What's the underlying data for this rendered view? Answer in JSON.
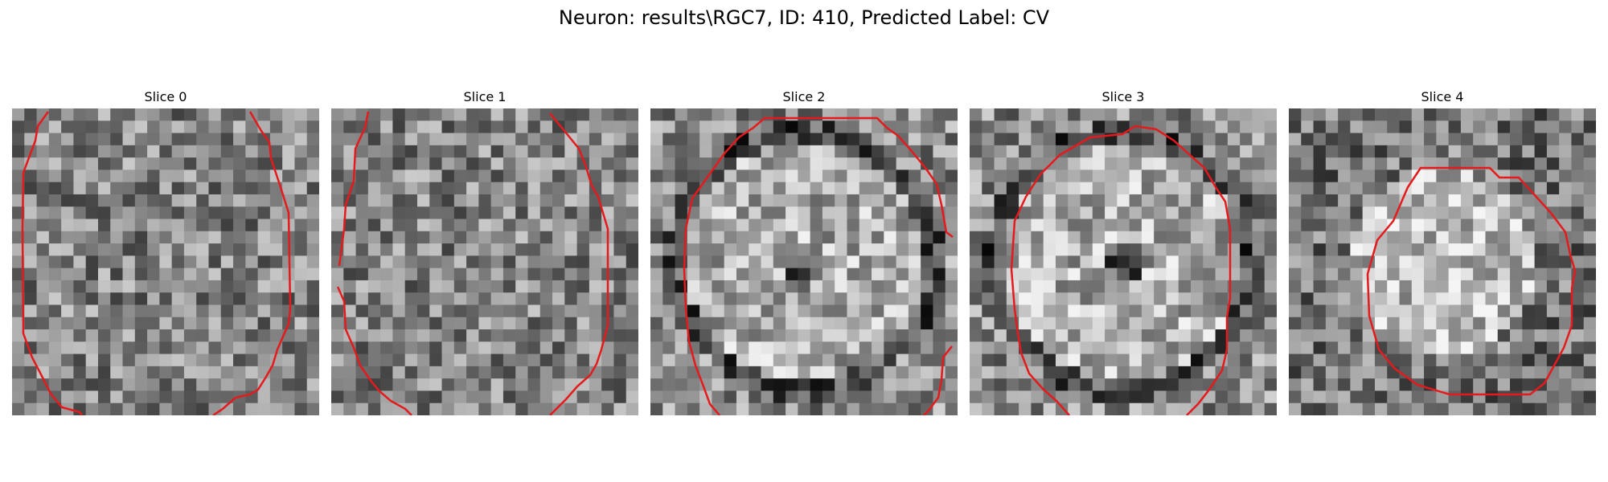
{
  "figure": {
    "title": "Neuron: results\\RGC7, ID: 410, Predicted Label: CV",
    "contour_color": "#e41a1c",
    "colormap": "gray"
  },
  "panels": [
    {
      "title": "Slice 0",
      "style": "flat"
    },
    {
      "title": "Slice 1",
      "style": "flat"
    },
    {
      "title": "Slice 2",
      "style": "ring"
    },
    {
      "title": "Slice 3",
      "style": "ring"
    },
    {
      "title": "Slice 4",
      "style": "disc"
    }
  ]
}
